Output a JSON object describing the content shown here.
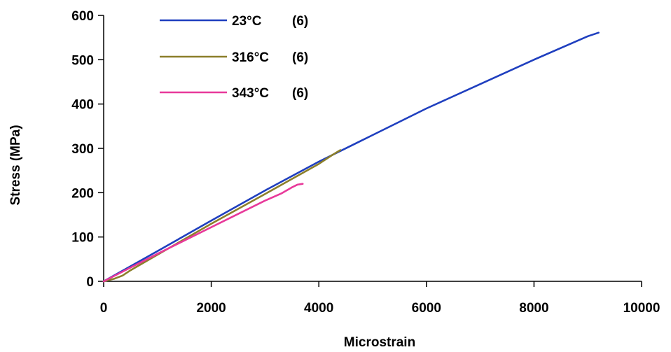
{
  "chart_data": {
    "type": "line",
    "title": "",
    "xlabel": "Microstrain",
    "ylabel": "Stress (MPa)",
    "xlim": [
      0,
      10000
    ],
    "ylim": [
      0,
      600
    ],
    "x_ticks": [
      "0",
      "2000",
      "4000",
      "6000",
      "8000",
      "10000"
    ],
    "y_ticks": [
      "0",
      "100",
      "200",
      "300",
      "400",
      "500",
      "600"
    ],
    "grid": false,
    "legend_position": "top-left",
    "series": [
      {
        "name": "23°C",
        "count": "(6)",
        "color": "#1f3fbf",
        "x": [
          0,
          1000,
          2000,
          3000,
          4000,
          5000,
          6000,
          7000,
          8000,
          9000,
          9200
        ],
        "y": [
          0,
          68,
          137,
          205,
          270,
          330,
          390,
          445,
          500,
          553,
          561
        ]
      },
      {
        "name": "316°C",
        "count": "(6)",
        "color": "#8c7f2a",
        "x": [
          0,
          200,
          350,
          500,
          1000,
          2000,
          3000,
          4000,
          4250,
          4400
        ],
        "y": [
          0,
          6,
          13,
          25,
          60,
          130,
          197,
          265,
          285,
          296
        ]
      },
      {
        "name": "343°C",
        "count": "(6)",
        "color": "#e8399a",
        "x": [
          0,
          1000,
          2000,
          3000,
          3300,
          3500,
          3600,
          3700
        ],
        "y": [
          0,
          62,
          122,
          182,
          198,
          212,
          218,
          220
        ]
      }
    ]
  }
}
